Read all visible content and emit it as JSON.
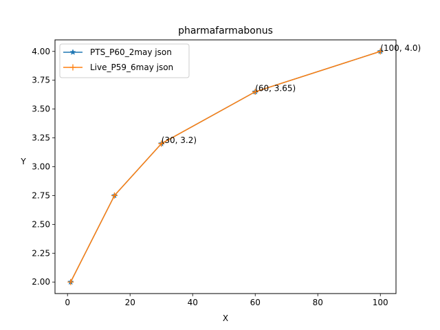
{
  "chart_data": {
    "type": "line",
    "title": "pharmafarmabonus",
    "xlabel": "X",
    "ylabel": "Y",
    "xlim": [
      -4,
      105
    ],
    "ylim": [
      1.9,
      4.1
    ],
    "xticks": [
      0,
      20,
      40,
      60,
      80,
      100
    ],
    "xtick_labels": [
      "0",
      "20",
      "40",
      "60",
      "80",
      "100"
    ],
    "yticks": [
      2.0,
      2.25,
      2.5,
      2.75,
      3.0,
      3.25,
      3.5,
      3.75,
      4.0
    ],
    "ytick_labels": [
      "2.00",
      "2.25",
      "2.50",
      "2.75",
      "3.00",
      "3.25",
      "3.50",
      "3.75",
      "4.00"
    ],
    "grid": false,
    "legend_position": "top-left",
    "series": [
      {
        "name": "PTS_P60_2may json",
        "color": "#1f77b4",
        "marker": "star",
        "x": [
          1,
          15,
          30,
          60,
          100
        ],
        "y": [
          2.0,
          2.75,
          3.2,
          3.65,
          4.0
        ]
      },
      {
        "name": "Live_P59_6may json",
        "color": "#ff7f0e",
        "marker": "plus",
        "x": [
          1,
          15,
          30,
          60,
          100
        ],
        "y": [
          2.0,
          2.75,
          3.2,
          3.65,
          4.0
        ]
      }
    ],
    "annotations": [
      {
        "text": "(30, 3.2)",
        "x": 30,
        "y": 3.2
      },
      {
        "text": "(60, 3.65)",
        "x": 60,
        "y": 3.65
      },
      {
        "text": "(100, 4.0)",
        "x": 100,
        "y": 4.0
      }
    ]
  }
}
